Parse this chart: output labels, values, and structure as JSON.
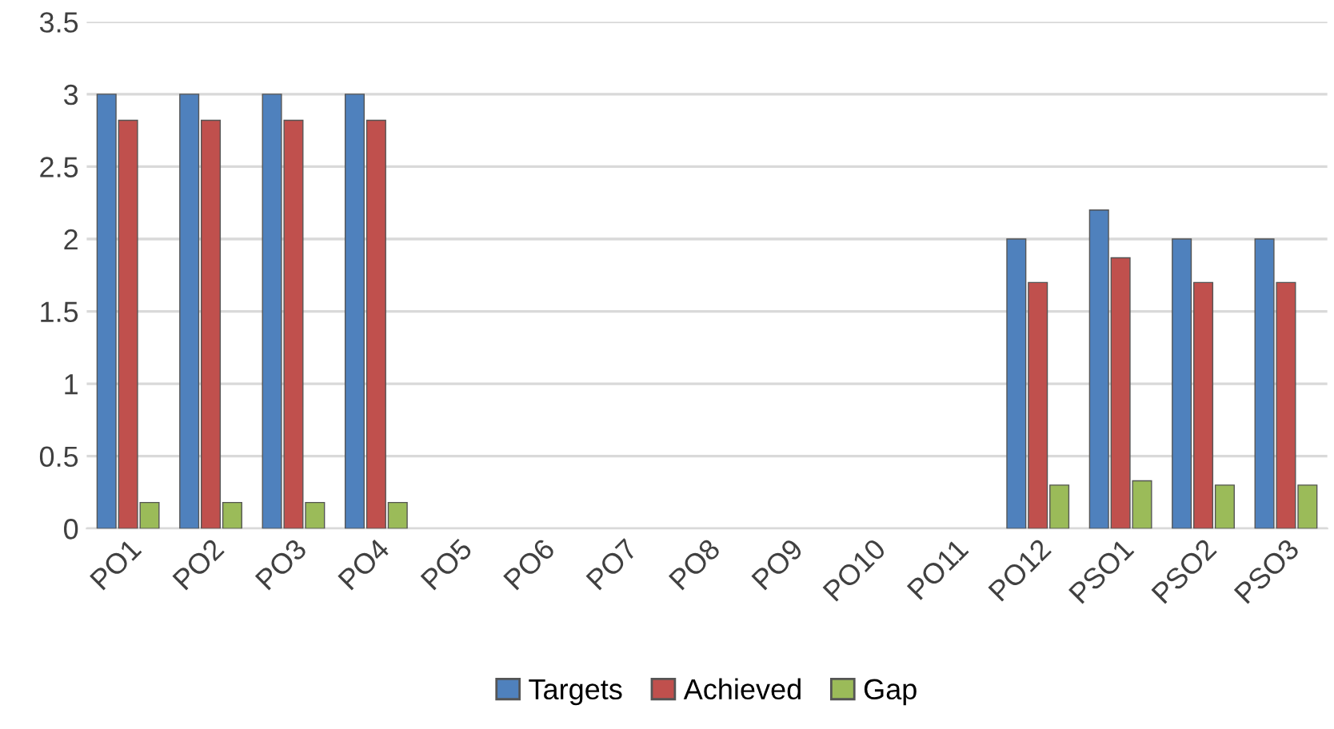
{
  "chart_data": {
    "type": "bar",
    "categories": [
      "PO1",
      "PO2",
      "PO3",
      "PO4",
      "PO5",
      "PO6",
      "PO7",
      "PO8",
      "PO9",
      "PO10",
      "PO11",
      "PO12",
      "PSO1",
      "PSO2",
      "PSO3"
    ],
    "series": [
      {
        "name": "Targets",
        "color": "#4f81bd",
        "values": [
          3,
          3,
          3,
          3,
          null,
          null,
          null,
          null,
          null,
          null,
          null,
          2,
          2.2,
          2,
          2
        ]
      },
      {
        "name": "Achieved",
        "color": "#c0504d",
        "values": [
          2.82,
          2.82,
          2.82,
          2.82,
          null,
          null,
          null,
          null,
          null,
          null,
          null,
          1.7,
          1.87,
          1.7,
          1.7
        ]
      },
      {
        "name": "Gap",
        "color": "#9bbb59",
        "values": [
          0.18,
          0.18,
          0.18,
          0.18,
          null,
          null,
          null,
          null,
          null,
          null,
          null,
          0.3,
          0.33,
          0.3,
          0.3
        ]
      }
    ],
    "ylim": [
      0,
      3.5
    ],
    "yticks": [
      0,
      0.5,
      1,
      1.5,
      2,
      2.5,
      3,
      3.5
    ],
    "grid": "y",
    "legend": "bottom"
  }
}
